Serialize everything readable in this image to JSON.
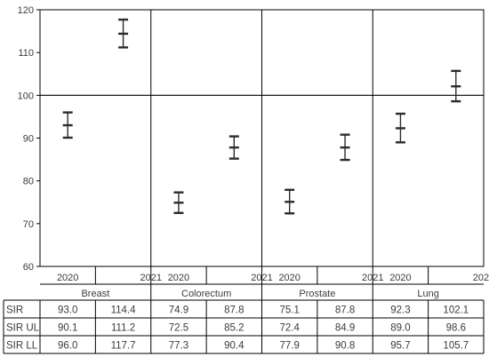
{
  "chart_data": {
    "type": "table",
    "title": "",
    "xlabel": "",
    "ylabel": "",
    "ylim": [
      60,
      120
    ],
    "yticks": [
      60,
      70,
      80,
      90,
      100,
      110,
      120
    ],
    "reference_line": 100,
    "grid": false,
    "groups": [
      "Breast",
      "Colorectum",
      "Prostate",
      "Lung"
    ],
    "years": [
      "2020",
      "2021"
    ],
    "row_labels": [
      "SIR",
      "SIR UL",
      "SIR LL"
    ],
    "series": [
      {
        "name": "SIR",
        "values": [
          93.0,
          114.4,
          74.9,
          87.8,
          75.1,
          87.8,
          92.3,
          102.1
        ],
        "labels": [
          "93.0",
          "114.4",
          "74.9",
          "87.8",
          "75.1",
          "87.8",
          "92.3",
          "102.1"
        ]
      },
      {
        "name": "SIR UL",
        "values": [
          90.1,
          111.2,
          72.5,
          85.2,
          72.4,
          84.9,
          89.0,
          98.6
        ],
        "labels": [
          "90.1",
          "111.2",
          "72.5",
          "85.2",
          "72.4",
          "84.9",
          "89.0",
          "98.6"
        ]
      },
      {
        "name": "SIR LL",
        "values": [
          96.0,
          117.7,
          77.3,
          90.4,
          77.9,
          90.8,
          95.7,
          105.7
        ],
        "labels": [
          "96.0",
          "117.7",
          "77.3",
          "90.4",
          "77.9",
          "90.8",
          "95.7",
          "105.7"
        ]
      }
    ]
  },
  "colors": {
    "axis": "#000000",
    "marker": "#2b2b2b",
    "text": "#3b3b3b",
    "table_border": "#000000"
  }
}
